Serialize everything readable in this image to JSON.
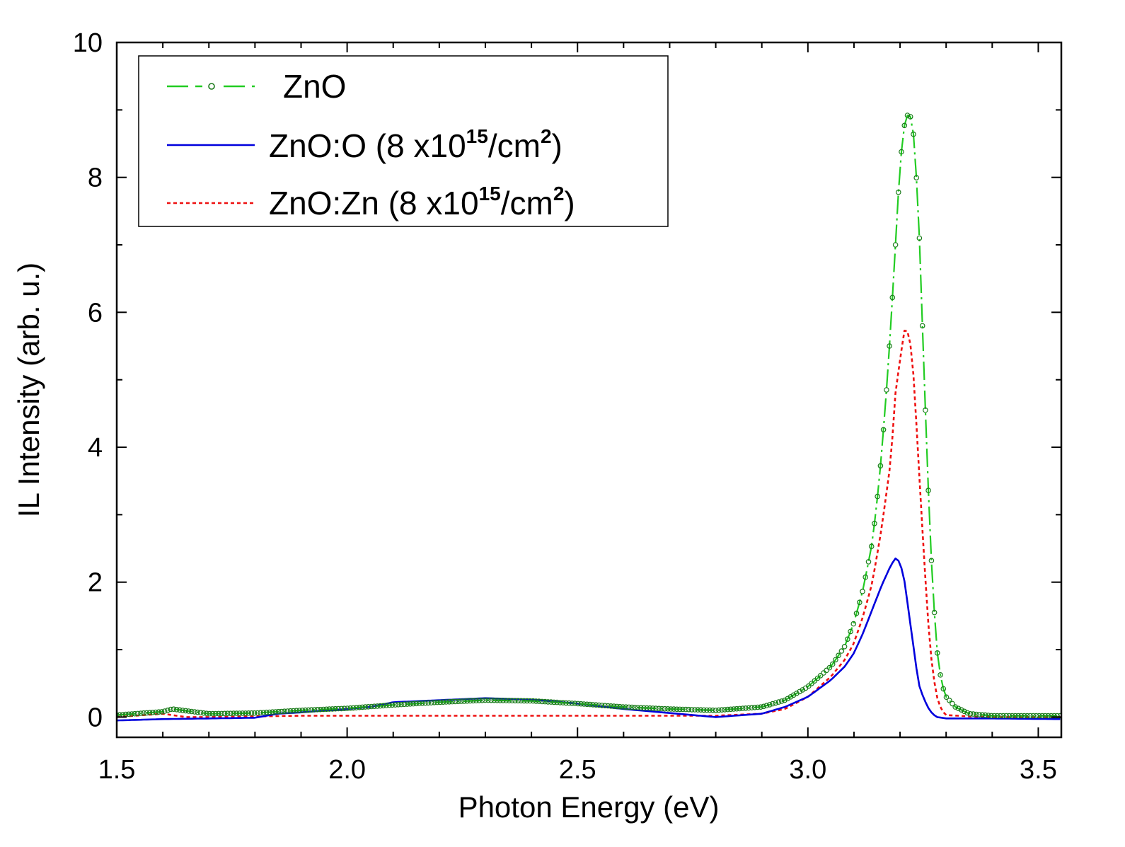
{
  "chart_data": {
    "type": "line",
    "title": "",
    "xlabel": "Photon Energy (eV)",
    "ylabel": "IL Intensity (arb. u.)",
    "xlim": [
      1.5,
      3.55
    ],
    "ylim": [
      -0.3,
      10
    ],
    "xticks": [
      1.5,
      2.0,
      2.5,
      3.0,
      3.5
    ],
    "xtick_labels": [
      "1.5",
      "2.0",
      "2.5",
      "3.0",
      "3.5"
    ],
    "yticks": [
      0,
      2,
      4,
      6,
      8,
      10
    ],
    "ytick_labels": [
      "0",
      "2",
      "4",
      "6",
      "8",
      "10"
    ],
    "legend_position": "top-left",
    "series": [
      {
        "name": "ZnO",
        "legend": {
          "base": "ZnO",
          "mid": "",
          "sup1": "",
          "after": "",
          "sup2": "",
          "tail": ""
        },
        "color": "#22cc22",
        "marker_color": "#1a7a1a",
        "style": "dash-dot-circles",
        "x": [
          1.5,
          1.6,
          1.62,
          1.7,
          1.8,
          1.9,
          2.0,
          2.1,
          2.2,
          2.3,
          2.4,
          2.5,
          2.6,
          2.7,
          2.8,
          2.9,
          2.95,
          3.0,
          3.05,
          3.08,
          3.1,
          3.12,
          3.14,
          3.15,
          3.16,
          3.17,
          3.18,
          3.19,
          3.2,
          3.21,
          3.22,
          3.23,
          3.24,
          3.25,
          3.26,
          3.27,
          3.28,
          3.29,
          3.3,
          3.32,
          3.35,
          3.4,
          3.5,
          3.55
        ],
        "y": [
          0.03,
          0.08,
          0.12,
          0.05,
          0.06,
          0.1,
          0.13,
          0.18,
          0.22,
          0.25,
          0.24,
          0.2,
          0.15,
          0.12,
          0.1,
          0.15,
          0.25,
          0.45,
          0.75,
          1.05,
          1.4,
          1.9,
          2.6,
          3.2,
          3.9,
          4.8,
          5.8,
          7.0,
          8.2,
          8.8,
          9.0,
          8.6,
          7.5,
          5.5,
          3.6,
          2.0,
          1.0,
          0.5,
          0.3,
          0.15,
          0.05,
          0.02,
          0.02,
          0.02
        ]
      },
      {
        "name": "ZnO:O (8 x10^15/cm^2)",
        "legend": {
          "base": "ZnO",
          "mid": ":O (8 x10",
          "sup1": "15",
          "after": "/cm",
          "sup2": "2",
          "tail": ")"
        },
        "color": "#0000dd",
        "style": "solid",
        "x": [
          1.5,
          1.6,
          1.7,
          1.8,
          1.85,
          1.9,
          2.0,
          2.05,
          2.1,
          2.2,
          2.3,
          2.4,
          2.5,
          2.6,
          2.7,
          2.8,
          2.9,
          2.95,
          3.0,
          3.05,
          3.08,
          3.1,
          3.12,
          3.14,
          3.16,
          3.18,
          3.19,
          3.2,
          3.21,
          3.22,
          3.23,
          3.24,
          3.25,
          3.26,
          3.27,
          3.28,
          3.3,
          3.4,
          3.55
        ],
        "y": [
          -0.05,
          -0.03,
          -0.02,
          -0.01,
          0.05,
          0.07,
          0.12,
          0.15,
          0.22,
          0.25,
          0.28,
          0.26,
          0.2,
          0.12,
          0.06,
          0.0,
          0.05,
          0.15,
          0.3,
          0.55,
          0.75,
          0.95,
          1.25,
          1.6,
          1.95,
          2.25,
          2.35,
          2.3,
          2.0,
          1.5,
          1.0,
          0.5,
          0.3,
          0.15,
          0.05,
          0.0,
          -0.02,
          -0.02,
          -0.03
        ]
      },
      {
        "name": "ZnO:Zn (8 x10^15/cm^2)",
        "legend": {
          "base": "ZnO",
          "mid": ":Zn (8 x10",
          "sup1": "15",
          "after": "/cm",
          "sup2": "2",
          "tail": ")"
        },
        "color": "#ee1111",
        "style": "dotted",
        "x": [
          1.5,
          1.6,
          1.65,
          1.7,
          1.8,
          1.9,
          2.0,
          2.2,
          2.4,
          2.6,
          2.8,
          2.9,
          2.95,
          3.0,
          3.05,
          3.08,
          3.1,
          3.12,
          3.14,
          3.16,
          3.18,
          3.19,
          3.2,
          3.21,
          3.22,
          3.23,
          3.24,
          3.25,
          3.26,
          3.27,
          3.28,
          3.29,
          3.3,
          3.35,
          3.4,
          3.55
        ],
        "y": [
          0.0,
          0.05,
          0.0,
          0.0,
          0.01,
          0.02,
          0.02,
          0.02,
          0.02,
          0.02,
          0.02,
          0.05,
          0.12,
          0.3,
          0.6,
          0.85,
          1.1,
          1.5,
          2.0,
          2.8,
          3.8,
          4.8,
          5.3,
          5.75,
          5.7,
          5.0,
          3.8,
          2.6,
          1.5,
          0.7,
          0.3,
          0.1,
          0.03,
          0.01,
          0.0,
          0.0
        ]
      }
    ]
  }
}
